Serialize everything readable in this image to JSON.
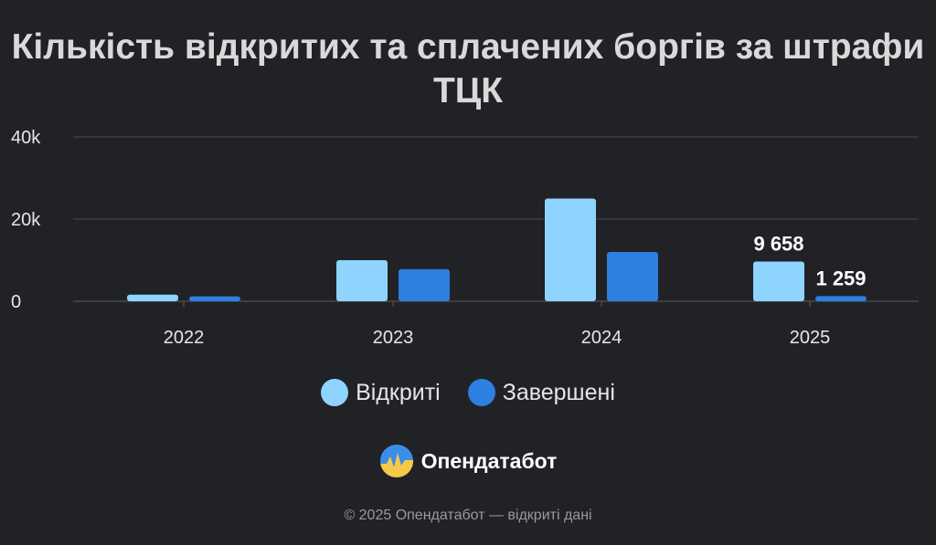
{
  "title": "Кількість відкритих та сплачених боргів за штрафи ТЦК",
  "chart_data": {
    "type": "bar",
    "categories": [
      "2022",
      "2023",
      "2024",
      "2025"
    ],
    "series": [
      {
        "name": "Відкриті",
        "values": [
          1600,
          10000,
          25000,
          9658
        ],
        "color": "#8fd4ff"
      },
      {
        "name": "Завершені",
        "values": [
          1200,
          7800,
          12000,
          1259
        ],
        "color": "#2d7fe0"
      }
    ],
    "ylim": [
      0,
      40000
    ],
    "yticks": [
      0,
      20000,
      40000
    ],
    "ytick_labels": [
      "0",
      "20k",
      "40k"
    ],
    "data_labels": [
      {
        "series": 0,
        "index": 3,
        "text": "9 658"
      },
      {
        "series": 1,
        "index": 3,
        "text": "1 259"
      }
    ],
    "grid": true,
    "legend_position": "bottom"
  },
  "brand": {
    "name": "Опендатабот",
    "logo_icon": "opendatabot-logo-icon"
  },
  "footer": "© 2025 Опендатабот — відкриті дані"
}
